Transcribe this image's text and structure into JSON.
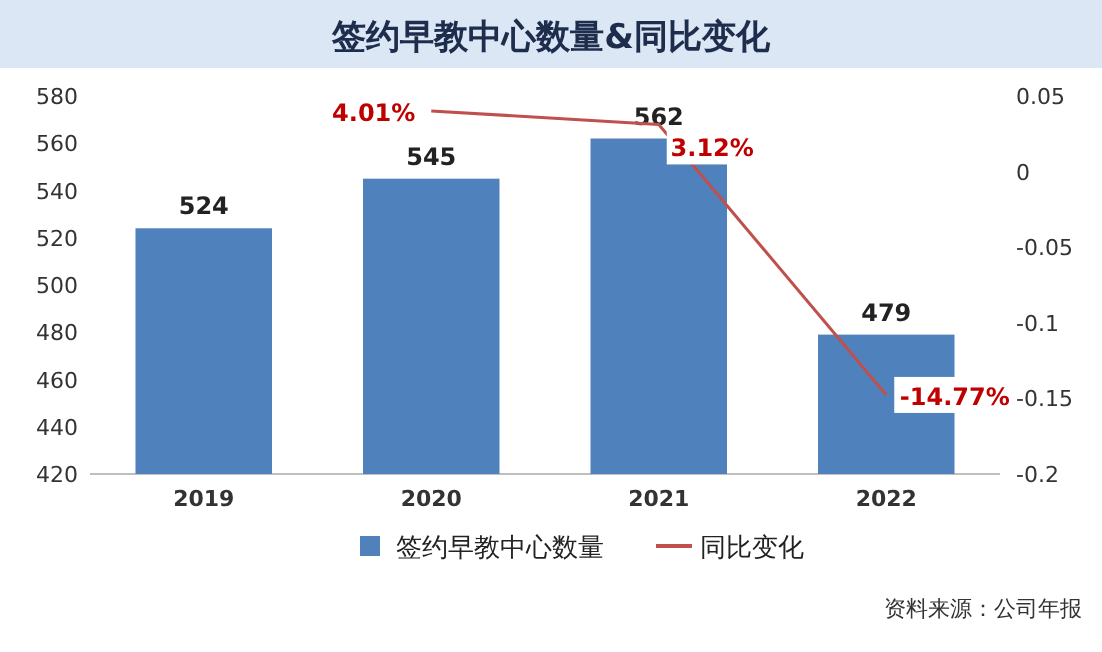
{
  "chart_data": {
    "type": "bar",
    "title": "签约早教中心数量&同比变化",
    "categories": [
      "2019",
      "2020",
      "2021",
      "2022"
    ],
    "series": [
      {
        "name": "签约早教中心数量",
        "color": "#4f81bd",
        "values": [
          524,
          545,
          562,
          479
        ],
        "value_labels": [
          "524",
          "545",
          "562",
          "479"
        ]
      },
      {
        "name": "同比变化",
        "type": "line",
        "axis": "y2",
        "color": "#c0504d",
        "values": [
          null,
          0.0401,
          0.0312,
          -0.1477
        ],
        "value_labels": [
          null,
          "4.01%",
          "3.12%",
          "-14.77%"
        ]
      }
    ],
    "ylim": [
      420,
      580
    ],
    "yticks": [
      420,
      440,
      460,
      480,
      500,
      520,
      540,
      560,
      580
    ],
    "y2lim": [
      -0.2,
      0.05
    ],
    "y2ticks": [
      -0.2,
      -0.15,
      -0.1,
      -0.05,
      0,
      0.05
    ],
    "grid": false,
    "legend": "bottom",
    "marker": "none",
    "line_style": "solid",
    "annotations": [
      "资料来源：公司年报"
    ]
  }
}
